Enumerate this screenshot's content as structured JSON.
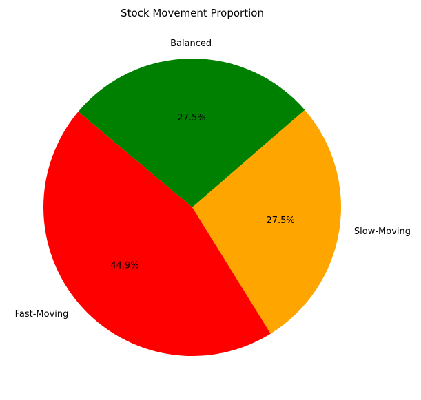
{
  "chart_data": {
    "type": "pie",
    "title": "Stock Movement Proportion",
    "categories": [
      "Fast-Moving",
      "Slow-Moving",
      "Balanced"
    ],
    "values": [
      44.9,
      27.5,
      27.5
    ],
    "percent_labels": [
      "44.9%",
      "27.5%",
      "27.5%"
    ],
    "colors": [
      "#ff0000",
      "#ffa500",
      "#008000"
    ],
    "start_angle_deg": 140,
    "direction": "counterclockwise",
    "legend": "none"
  }
}
